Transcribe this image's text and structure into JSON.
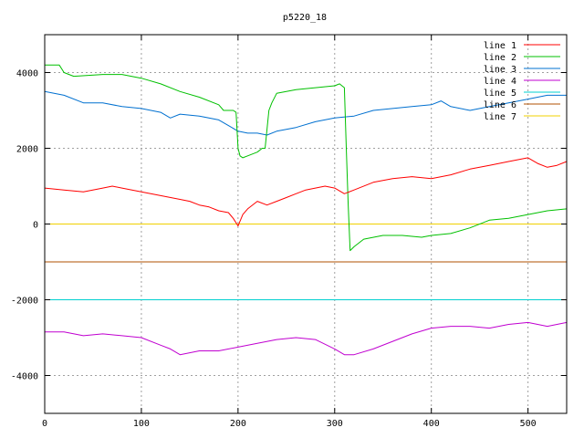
{
  "chart_data": {
    "type": "line",
    "title": "p5220_18",
    "xlabel": "",
    "ylabel": "",
    "xlim": [
      0,
      540
    ],
    "ylim": [
      -5000,
      5000
    ],
    "xticks": [
      0,
      100,
      200,
      300,
      400,
      500
    ],
    "yticks": [
      -4000,
      -2000,
      0,
      2000,
      4000
    ],
    "grid": true,
    "legend_position": "top-right",
    "series": [
      {
        "name": "line 1",
        "color": "#ff0000",
        "x": [
          0,
          20,
          40,
          60,
          70,
          80,
          100,
          120,
          140,
          150,
          160,
          170,
          180,
          190,
          195,
          200,
          205,
          210,
          220,
          230,
          240,
          250,
          260,
          270,
          280,
          290,
          300,
          310,
          320,
          340,
          360,
          380,
          400,
          420,
          440,
          460,
          480,
          500,
          510,
          520,
          530,
          540
        ],
        "y": [
          950,
          900,
          850,
          950,
          1000,
          950,
          850,
          750,
          650,
          600,
          500,
          450,
          350,
          300,
          150,
          -50,
          250,
          400,
          600,
          500,
          600,
          700,
          800,
          900,
          950,
          1000,
          950,
          800,
          900,
          1100,
          1200,
          1250,
          1200,
          1300,
          1450,
          1550,
          1650,
          1750,
          1600,
          1500,
          1550,
          1650
        ]
      },
      {
        "name": "line 2",
        "color": "#00c000",
        "x": [
          0,
          15,
          20,
          30,
          60,
          80,
          100,
          120,
          140,
          160,
          180,
          185,
          195,
          198,
          200,
          202,
          205,
          210,
          220,
          225,
          228,
          230,
          232,
          235,
          240,
          260,
          280,
          300,
          305,
          310,
          312,
          314,
          316,
          320,
          330,
          350,
          370,
          390,
          400,
          420,
          440,
          460,
          480,
          500,
          520,
          540
        ],
        "y": [
          4200,
          4200,
          4000,
          3900,
          3950,
          3950,
          3850,
          3700,
          3500,
          3350,
          3150,
          3000,
          3000,
          2950,
          2000,
          1800,
          1750,
          1800,
          1900,
          2000,
          2000,
          2500,
          3000,
          3200,
          3450,
          3550,
          3600,
          3650,
          3700,
          3600,
          2000,
          500,
          -700,
          -600,
          -400,
          -300,
          -300,
          -350,
          -300,
          -250,
          -100,
          100,
          150,
          250,
          350,
          400
        ]
      },
      {
        "name": "line 3",
        "color": "#0070d0",
        "x": [
          0,
          20,
          40,
          60,
          80,
          100,
          120,
          130,
          140,
          160,
          180,
          190,
          200,
          210,
          220,
          230,
          240,
          260,
          280,
          300,
          320,
          340,
          360,
          380,
          400,
          410,
          420,
          440,
          460,
          480,
          500,
          520,
          540
        ],
        "y": [
          3500,
          3400,
          3200,
          3200,
          3100,
          3050,
          2950,
          2800,
          2900,
          2850,
          2750,
          2600,
          2450,
          2400,
          2400,
          2350,
          2450,
          2550,
          2700,
          2800,
          2850,
          3000,
          3050,
          3100,
          3150,
          3250,
          3100,
          3000,
          3100,
          3200,
          3300,
          3400,
          3400
        ]
      },
      {
        "name": "line 4",
        "color": "#c000d0",
        "x": [
          0,
          20,
          40,
          60,
          80,
          100,
          120,
          130,
          140,
          160,
          180,
          200,
          220,
          240,
          260,
          280,
          300,
          310,
          320,
          340,
          360,
          380,
          400,
          420,
          440,
          460,
          480,
          500,
          520,
          540
        ],
        "y": [
          -2850,
          -2850,
          -2950,
          -2900,
          -2950,
          -3000,
          -3200,
          -3300,
          -3450,
          -3350,
          -3350,
          -3250,
          -3150,
          -3050,
          -3000,
          -3050,
          -3300,
          -3450,
          -3450,
          -3300,
          -3100,
          -2900,
          -2750,
          -2700,
          -2700,
          -2750,
          -2650,
          -2600,
          -2700,
          -2600
        ]
      },
      {
        "name": "line 5",
        "color": "#00d0d0",
        "x": [
          0,
          540
        ],
        "y": [
          -2000,
          -2000
        ]
      },
      {
        "name": "line 6",
        "color": "#b05000",
        "x": [
          0,
          540
        ],
        "y": [
          -1000,
          -1000
        ]
      },
      {
        "name": "line 7",
        "color": "#f0d000",
        "x": [
          0,
          540
        ],
        "y": [
          0,
          0
        ]
      }
    ]
  }
}
